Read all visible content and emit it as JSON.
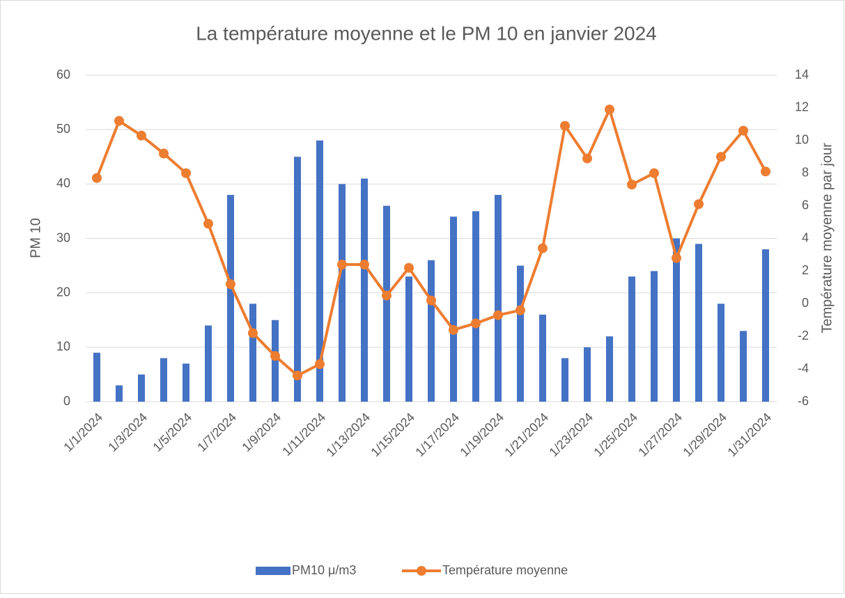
{
  "chart_data": {
    "type": "bar-line",
    "title": "La température moyenne et le PM 10 en janvier 2024",
    "y_label": "PM 10",
    "y2_label": "Température moyenne par jour",
    "categories": [
      "1/1/2024",
      null,
      "1/3/2024",
      null,
      "1/5/2024",
      null,
      "1/7/2024",
      null,
      "1/9/2024",
      null,
      "1/11/2024",
      null,
      "1/13/2024",
      null,
      "1/15/2024",
      null,
      "1/17/2024",
      null,
      "1/19/2024",
      null,
      "1/21/2024",
      null,
      "1/23/2024",
      null,
      "1/25/2024",
      null,
      "1/27/2024",
      null,
      "1/29/2024",
      null,
      "1/31/2024"
    ],
    "series": [
      {
        "name": "PM10 μ/m3",
        "type": "bar",
        "color": "#4472c4",
        "values": [
          9,
          3,
          5,
          8,
          7,
          14,
          38,
          18,
          15,
          45,
          48,
          40,
          41,
          36,
          23,
          26,
          34,
          35,
          38,
          25,
          16,
          8,
          10,
          12,
          23,
          24,
          30,
          29,
          18,
          13,
          28
        ]
      },
      {
        "name": "Température moyenne",
        "type": "line",
        "axis": "y2",
        "color": "#ed7d31",
        "values": [
          7.7,
          11.2,
          10.3,
          9.2,
          8.0,
          4.9,
          1.2,
          -1.8,
          -3.2,
          -4.4,
          -3.7,
          2.4,
          2.4,
          0.5,
          2.2,
          0.2,
          -1.6,
          -1.2,
          -0.7,
          -0.4,
          3.4,
          10.9,
          8.9,
          11.9,
          7.3,
          8.0,
          2.8,
          6.1,
          9.0,
          10.6,
          8.1
        ]
      }
    ],
    "ylim": [
      0,
      60
    ],
    "yticks": [
      0,
      10,
      20,
      30,
      40,
      50,
      60
    ],
    "y2lim": [
      -6,
      14
    ],
    "y2ticks": [
      -6,
      -4,
      -2,
      0,
      2,
      4,
      6,
      8,
      10,
      12,
      14
    ],
    "grid": true,
    "legend": "bottom"
  }
}
